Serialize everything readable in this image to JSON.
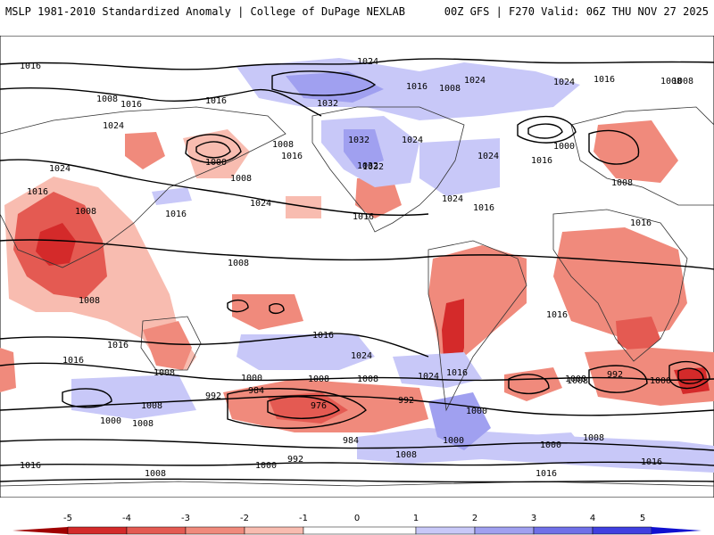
{
  "header": {
    "left_title": "MSLP 1981-2010 Standardized Anomaly | College of DuPage NEXLAB",
    "right_title": "00Z GFS | F270 Valid: 06Z THU NOV 27 2025"
  },
  "colors": {
    "neg5": "#a00000",
    "neg4": "#d42a2a",
    "neg3": "#e45a52",
    "neg2": "#f08a7c",
    "neg1": "#f8bcb0",
    "zero": "#ffffff",
    "pos1": "#c8c8f8",
    "pos2": "#a0a0f0",
    "pos3": "#7070e8",
    "pos4": "#4040e0",
    "pos5": "#1010d0"
  },
  "colorbar": {
    "ticks": [
      "-5",
      "-4",
      "-3",
      "-2",
      "-1",
      "0",
      "1",
      "2",
      "3",
      "4",
      "5"
    ]
  },
  "isobar_labels": [
    "1016",
    "1008",
    "1016",
    "1016",
    "1024",
    "1032",
    "1024",
    "1016",
    "1008",
    "1000",
    "1008",
    "1024",
    "1016",
    "1024",
    "1008",
    "1032",
    "1016",
    "1032",
    "1016",
    "1024",
    "1024",
    "1008",
    "1016",
    "1024",
    "1024",
    "1008",
    "1016",
    "1008",
    "1016",
    "1000",
    "1024",
    "1016",
    "1008",
    "1016",
    "1016",
    "1016",
    "1008",
    "1008",
    "1016",
    "1024",
    "1024",
    "1016",
    "1008",
    "1000",
    "1008",
    "1000",
    "1016",
    "1008",
    "992",
    "1008",
    "984",
    "976",
    "992",
    "1000",
    "1008",
    "1000",
    "992",
    "984",
    "1000",
    "1000",
    "1008",
    "1016",
    "1016",
    "1008",
    "1000",
    "992",
    "1008",
    "1016",
    "1008",
    "1032",
    "1008"
  ]
}
